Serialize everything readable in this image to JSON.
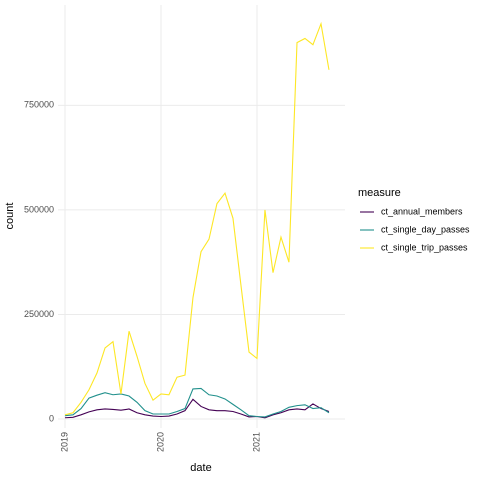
{
  "chart_data": {
    "type": "line",
    "x_label": "date",
    "y_label": "count",
    "x": [
      2019,
      2019.083,
      2019.167,
      2019.25,
      2019.333,
      2019.417,
      2019.5,
      2019.583,
      2019.667,
      2019.75,
      2019.833,
      2019.917,
      2020,
      2020.083,
      2020.167,
      2020.25,
      2020.333,
      2020.417,
      2020.5,
      2020.583,
      2020.667,
      2020.75,
      2020.833,
      2020.917,
      2021,
      2021.083,
      2021.167,
      2021.25,
      2021.333,
      2021.417,
      2021.5,
      2021.583,
      2021.667,
      2021.75
    ],
    "series": [
      {
        "name": "ct_annual_members",
        "color": "#440154",
        "values": [
          3000,
          4000,
          10000,
          17000,
          22000,
          24000,
          23000,
          21000,
          24000,
          15000,
          10000,
          7000,
          6000,
          7000,
          12000,
          20000,
          47000,
          30000,
          22000,
          20000,
          20000,
          18000,
          12000,
          5000,
          6000,
          3000,
          10000,
          15000,
          22000,
          24000,
          22000,
          36000,
          25000,
          18000
        ]
      },
      {
        "name": "ct_single_day_passes",
        "color": "#21908C",
        "values": [
          8000,
          10000,
          25000,
          50000,
          57000,
          63000,
          58000,
          60000,
          55000,
          40000,
          20000,
          12000,
          12000,
          12000,
          18000,
          25000,
          72000,
          73000,
          58000,
          55000,
          48000,
          35000,
          22000,
          8000,
          6000,
          5000,
          12000,
          18000,
          28000,
          32000,
          34000,
          25000,
          27000,
          15000
        ]
      },
      {
        "name": "ct_single_trip_passes",
        "color": "#FDE725",
        "values": [
          10000,
          15000,
          40000,
          70000,
          110000,
          170000,
          185000,
          60000,
          210000,
          150000,
          85000,
          45000,
          60000,
          58000,
          100000,
          105000,
          290000,
          400000,
          430000,
          515000,
          540000,
          480000,
          320000,
          160000,
          145000,
          500000,
          350000,
          435000,
          375000,
          900000,
          910000,
          895000,
          945000,
          835000
        ]
      }
    ],
    "xlim": [
      2018.927,
      2021.917
    ],
    "xticks": [
      2019,
      2020,
      2021
    ],
    "ylim": [
      -21500,
      990000
    ],
    "yticks": [
      0,
      250000,
      500000,
      750000
    ],
    "grid": true,
    "legend_title": "measure",
    "legend_position": "right"
  }
}
